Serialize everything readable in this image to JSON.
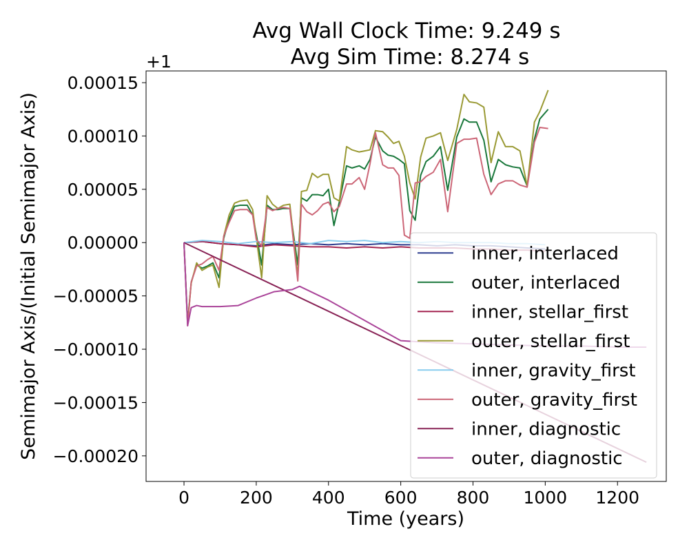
{
  "chart_data": {
    "type": "line",
    "title": "Avg Wall Clock Time: 9.249 s",
    "subtitle": "Avg Sim Time: 8.274 s",
    "xlabel": "Time (years)",
    "ylabel": "Semimajor Axis/(Initial Semimajor Axis)",
    "y_offset_label": "+1",
    "xlim": [
      -105,
      1335
    ],
    "ylim": [
      -0.000224,
      0.000161
    ],
    "x_ticks": [
      0,
      200,
      400,
      600,
      800,
      1000,
      1200
    ],
    "y_ticks": [
      0.00015,
      0.0001,
      5e-05,
      0.0,
      -5e-05,
      -0.0001,
      -0.00015,
      -0.0002
    ],
    "y_tick_labels": [
      "0.00015",
      "0.00010",
      "0.00005",
      "0.00000",
      "−0.00005",
      "−0.00010",
      "−0.00015",
      "−0.00020"
    ],
    "grid": false,
    "legend_position": "lower-right",
    "series": [
      {
        "name": "inner, interlaced",
        "color": "#2e3e8f",
        "x": [
          0,
          50,
          100,
          150,
          200,
          250,
          300,
          350,
          400,
          450,
          500,
          550,
          600,
          650,
          700,
          750,
          800,
          850,
          900,
          950,
          1000
        ],
        "y": [
          0,
          1e-06,
          -1e-06,
          -2e-06,
          -3e-06,
          -1e-06,
          -2e-06,
          -1e-06,
          -2e-06,
          -1e-06,
          -2e-06,
          -1e-06,
          -2e-06,
          -2e-06,
          -3e-06,
          -2e-06,
          -3e-06,
          -3e-06,
          -4e-06,
          -5e-06,
          -6e-06
        ]
      },
      {
        "name": "outer, interlaced",
        "color": "#18773a",
        "x": [
          0,
          10,
          20,
          35,
          50,
          65,
          80,
          97,
          110,
          125,
          140,
          155,
          175,
          190,
          200,
          215,
          230,
          245,
          260,
          275,
          293,
          315,
          325,
          340,
          355,
          370,
          385,
          400,
          415,
          430,
          450,
          465,
          485,
          500,
          515,
          530,
          550,
          565,
          580,
          595,
          610,
          625,
          640,
          655,
          670,
          690,
          710,
          730,
          755,
          775,
          790,
          810,
          830,
          850,
          870,
          890,
          910,
          930,
          950,
          970,
          985,
          1008
        ],
        "y": [
          0,
          -7.5e-05,
          -3.7e-05,
          -2.1e-05,
          -2.4e-05,
          -2.2e-05,
          -1.9e-05,
          -3.3e-05,
          4e-06,
          2.2e-05,
          3.4e-05,
          3.5e-05,
          3.5e-05,
          2.6e-05,
          8e-06,
          -2.1e-05,
          3.5e-05,
          3.1e-05,
          3.1e-05,
          3.2e-05,
          3.2e-05,
          -2.1e-05,
          4.2e-05,
          3.9e-05,
          4.5e-05,
          4.5e-05,
          4.4e-05,
          5e-05,
          1.6e-05,
          3.8e-05,
          7.2e-05,
          7e-05,
          7.2e-05,
          6.9e-05,
          7.8e-05,
          9.9e-05,
          8.6e-05,
          8.2e-05,
          8.1e-05,
          7.8e-05,
          7.4e-05,
          3e-05,
          2.1e-05,
          6.3e-05,
          7.6e-05,
          8.1e-05,
          9e-05,
          4.9e-05,
          9.9e-05,
          0.000116,
          0.000113,
          0.000113,
          9.6e-05,
          5.7e-05,
          7.8e-05,
          7.3e-05,
          7.1e-05,
          7e-05,
          5.3e-05,
          9.7e-05,
          0.000116,
          0.000125
        ]
      },
      {
        "name": "inner, stellar_first",
        "color": "#a32550",
        "x": [
          0,
          50,
          100,
          150,
          200,
          250,
          300,
          350,
          400,
          450,
          500,
          550,
          600,
          650,
          700,
          750,
          800,
          850,
          900,
          950,
          1000
        ],
        "y": [
          0,
          1e-06,
          -1e-06,
          -2e-06,
          -4e-06,
          -2e-06,
          -3e-06,
          -4e-06,
          -4e-06,
          -5e-06,
          -4e-06,
          -5e-06,
          -4e-06,
          -5e-06,
          -5e-06,
          -5e-06,
          -6e-06,
          -6e-06,
          -7e-06,
          -7e-06,
          -8e-06
        ]
      },
      {
        "name": "outer, stellar_first",
        "color": "#999933",
        "x": [
          0,
          10,
          20,
          35,
          50,
          65,
          80,
          97,
          110,
          125,
          140,
          155,
          175,
          190,
          200,
          215,
          230,
          245,
          260,
          275,
          293,
          315,
          325,
          340,
          355,
          370,
          385,
          400,
          415,
          430,
          450,
          465,
          485,
          500,
          515,
          530,
          550,
          565,
          580,
          595,
          610,
          625,
          640,
          655,
          670,
          690,
          710,
          730,
          755,
          775,
          790,
          810,
          830,
          850,
          870,
          890,
          910,
          930,
          950,
          970,
          985,
          1008
        ],
        "y": [
          0,
          -7.6e-05,
          -3.8e-05,
          -1.9e-05,
          -2.6e-05,
          -2.3e-05,
          -2.1e-05,
          -4.2e-05,
          6e-06,
          2.6e-05,
          3.7e-05,
          3.9e-05,
          4e-05,
          3.1e-05,
          5e-06,
          -3.3e-05,
          4.4e-05,
          3.6e-05,
          3.2e-05,
          3.5e-05,
          3.6e-05,
          -3.2e-05,
          4.8e-05,
          4.9e-05,
          6.5e-05,
          6.1e-05,
          6.4e-05,
          6.4e-05,
          4.2e-05,
          3.9e-05,
          9e-05,
          8.7e-05,
          8.5e-05,
          8.6e-05,
          8.7e-05,
          0.000105,
          0.000104,
          9.9e-05,
          9.3e-05,
          9.5e-05,
          8.1e-05,
          5.6e-05,
          4.1e-05,
          8e-05,
          9.8e-05,
          0.0001,
          0.000103,
          7.7e-05,
          0.000106,
          0.000139,
          0.000132,
          0.000131,
          0.000127,
          7.5e-05,
          0.000104,
          9e-05,
          9e-05,
          8.6e-05,
          5.3e-05,
          0.000113,
          0.000123,
          0.000143
        ]
      },
      {
        "name": "inner, gravity_first",
        "color": "#88ccee",
        "x": [
          0,
          50,
          100,
          150,
          200,
          250,
          300,
          350,
          400,
          450,
          500,
          550,
          600,
          650,
          700,
          750,
          800,
          850,
          900,
          950,
          1000
        ],
        "y": [
          0,
          2e-06,
          1e-06,
          -1e-06,
          1e-06,
          0,
          1e-06,
          -1e-06,
          2e-06,
          1e-06,
          2e-06,
          0,
          1e-06,
          0,
          1e-06,
          0,
          0,
          0,
          -1e-06,
          -1e-06,
          -2e-06
        ]
      },
      {
        "name": "outer, gravity_first",
        "color": "#cc6677",
        "x": [
          0,
          10,
          20,
          35,
          50,
          65,
          80,
          97,
          110,
          125,
          140,
          155,
          175,
          190,
          200,
          215,
          230,
          245,
          260,
          275,
          293,
          315,
          325,
          340,
          355,
          370,
          385,
          400,
          415,
          430,
          450,
          465,
          485,
          500,
          515,
          530,
          550,
          565,
          580,
          595,
          610,
          625,
          640,
          655,
          670,
          690,
          710,
          730,
          755,
          775,
          790,
          810,
          830,
          850,
          870,
          890,
          910,
          930,
          950,
          970,
          985,
          1008
        ],
        "y": [
          0,
          -7.8e-05,
          -3.7e-05,
          -2.2e-05,
          -2e-05,
          -1.6e-05,
          -1.3e-05,
          -2.6e-05,
          6e-06,
          1.9e-05,
          3e-05,
          3.1e-05,
          3.1e-05,
          2.6e-05,
          3e-06,
          -3e-06,
          3.3e-05,
          3e-05,
          3.2e-05,
          3.3e-05,
          3.2e-05,
          -3.6e-05,
          3.6e-05,
          2.9e-05,
          2.6e-05,
          3e-05,
          3.6e-05,
          3.8e-05,
          2.9e-05,
          3.4e-05,
          5.5e-05,
          5.5e-05,
          6.1e-05,
          5e-05,
          7.4e-05,
          0.000103,
          7.3e-05,
          7e-05,
          7e-05,
          6.3e-05,
          7e-06,
          4e-06,
          5.6e-05,
          5.7e-05,
          6.2e-05,
          6.6e-05,
          7.8e-05,
          2.9e-05,
          9.3e-05,
          9.7e-05,
          9.7e-05,
          9.8e-05,
          6.4e-05,
          4.5e-05,
          5.5e-05,
          5.8e-05,
          5.8e-05,
          5.4e-05,
          5.2e-05,
          9.4e-05,
          0.000108,
          0.000107
        ]
      },
      {
        "name": "inner, diagnostic",
        "color": "#882255",
        "x": [
          0,
          1280
        ],
        "y": [
          0,
          -0.000206
        ]
      },
      {
        "name": "outer, diagnostic",
        "color": "#aa4499",
        "x": [
          0,
          10,
          20,
          35,
          50,
          100,
          150,
          200,
          250,
          300,
          320,
          400,
          500,
          600,
          650,
          700,
          800,
          900,
          1000,
          1100,
          1200,
          1280
        ],
        "y": [
          0,
          -7.8e-05,
          -6.1e-05,
          -5.9e-05,
          -6e-05,
          -6e-05,
          -5.9e-05,
          -5.2e-05,
          -4.6e-05,
          -4.4e-05,
          -4.1e-05,
          -5.4e-05,
          -7.3e-05,
          -9.2e-05,
          -9.3e-05,
          -9.4e-05,
          -9.5e-05,
          -9.6e-05,
          -9.7e-05,
          -9.7e-05,
          -9.8e-05,
          -9.8e-05
        ]
      }
    ]
  }
}
